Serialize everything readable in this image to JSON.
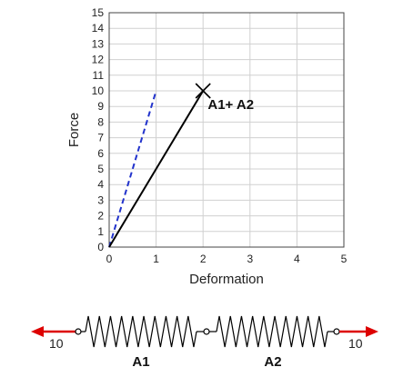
{
  "chart_data": {
    "type": "line",
    "xlabel": "Deformation",
    "ylabel": "Force",
    "xlim": [
      0,
      5
    ],
    "ylim": [
      0,
      15
    ],
    "x_ticks": [
      0,
      1,
      2,
      3,
      4,
      5
    ],
    "y_ticks": [
      0,
      1,
      2,
      3,
      4,
      5,
      6,
      7,
      8,
      9,
      10,
      11,
      12,
      13,
      14,
      15
    ],
    "grid": true,
    "series": [
      {
        "style": "dashed",
        "color": "#2233cc",
        "x": [
          0,
          1
        ],
        "y": [
          0,
          10
        ]
      },
      {
        "style": "solid",
        "color": "#000000",
        "x": [
          0,
          2
        ],
        "y": [
          0,
          10
        ],
        "end_marker": "x"
      }
    ],
    "annotations": [
      {
        "text": "A1+ A2",
        "x": 2.1,
        "y": 9.2
      }
    ]
  },
  "diagram": {
    "left_force": "10",
    "right_force": "10",
    "arrow_color": "#dd0000",
    "spring_labels": [
      "A1",
      "A2"
    ]
  }
}
